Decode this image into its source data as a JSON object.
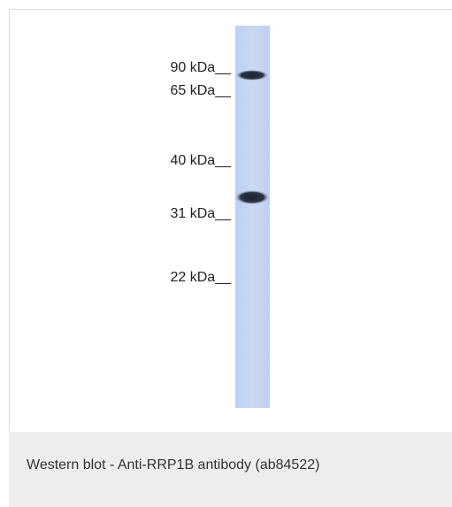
{
  "markers": [
    "90 kDa__",
    "65 kDa__",
    "40 kDa__",
    "31 kDa__",
    "22 kDa__"
  ],
  "caption": "Western blot - Anti-RRP1B antibody (ab84522)"
}
